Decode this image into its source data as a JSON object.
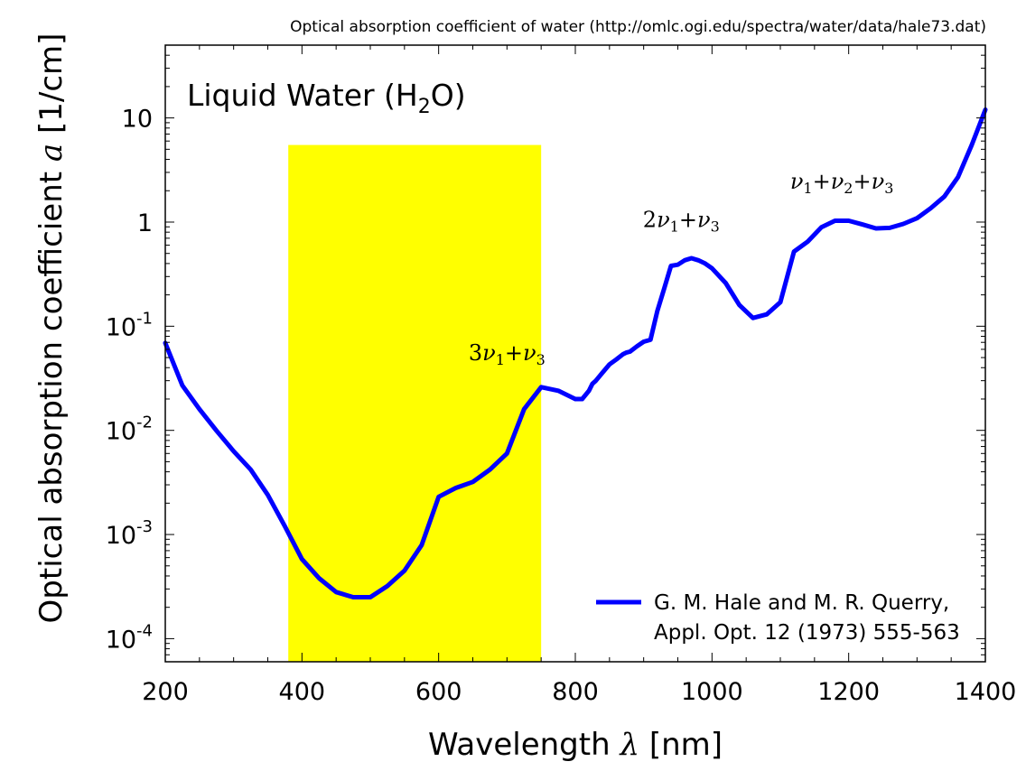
{
  "source_note": "Optical absorption coefficient of water (http://omlc.ogi.edu/spectra/water/data/hale73.dat)",
  "chart_data": {
    "type": "line",
    "title": "Liquid Water (H₂O)",
    "title_parts": {
      "base": "Liquid Water (H",
      "sub": "2",
      "tail": "O)"
    },
    "xlabel": "Wavelength λ [nm]",
    "xlabel_parts": {
      "text": "Wavelength ",
      "symbol": "λ",
      "unit": " [nm]"
    },
    "ylabel": "Optical absorption coefficient a [1/cm]",
    "ylabel_parts": {
      "text": "Optical absorption coefficient ",
      "symbol": "a",
      "unit": " [1/cm]"
    },
    "xlim": [
      200,
      1400
    ],
    "ylim": [
      6e-05,
      50
    ],
    "yscale": "log",
    "grid": false,
    "legend_position": "bottom-right",
    "x_ticks": [
      {
        "value": 200,
        "label": "200"
      },
      {
        "value": 400,
        "label": "400"
      },
      {
        "value": 600,
        "label": "600"
      },
      {
        "value": 800,
        "label": "800"
      },
      {
        "value": 1000,
        "label": "1000"
      },
      {
        "value": 1200,
        "label": "1200"
      },
      {
        "value": 1400,
        "label": "1400"
      }
    ],
    "y_ticks": [
      {
        "value": 0.0001,
        "base": "10",
        "exp": "-4"
      },
      {
        "value": 0.001,
        "base": "10",
        "exp": "-3"
      },
      {
        "value": 0.01,
        "base": "10",
        "exp": "-2"
      },
      {
        "value": 0.1,
        "base": "10",
        "exp": "-1"
      },
      {
        "value": 1,
        "base": "1",
        "exp": ""
      },
      {
        "value": 10,
        "base": "10",
        "exp": ""
      }
    ],
    "highlight_band": {
      "x_start": 380,
      "x_end": 750,
      "y_top": 5.5,
      "color": "#ffff00",
      "meaning": "visible range"
    },
    "series": [
      {
        "name": "G. M. Hale and M. R. Querry, Appl. Opt. 12 (1973) 555-563",
        "legend_lines": [
          "G. M. Hale and M. R. Querry,",
          "Appl. Opt. 12 (1973) 555-563"
        ],
        "color": "#0000ff",
        "x": [
          200,
          225,
          250,
          275,
          300,
          325,
          350,
          375,
          400,
          425,
          450,
          475,
          500,
          525,
          550,
          575,
          600,
          625,
          650,
          675,
          700,
          725,
          750,
          775,
          800,
          810,
          820,
          825,
          830,
          840,
          850,
          860,
          870,
          875,
          880,
          890,
          900,
          910,
          920,
          930,
          940,
          950,
          960,
          970,
          980,
          990,
          1000,
          1020,
          1040,
          1060,
          1080,
          1100,
          1120,
          1140,
          1160,
          1180,
          1200,
          1220,
          1240,
          1260,
          1280,
          1300,
          1320,
          1340,
          1360,
          1380,
          1400
        ],
        "y": [
          0.069,
          0.027,
          0.016,
          0.0099,
          0.0063,
          0.0042,
          0.0024,
          0.0012,
          0.00058,
          0.00038,
          0.00028,
          0.00025,
          0.00025,
          0.00032,
          0.00045,
          0.00079,
          0.0023,
          0.0028,
          0.0032,
          0.0042,
          0.006,
          0.016,
          0.026,
          0.024,
          0.02,
          0.02,
          0.024,
          0.028,
          0.03,
          0.036,
          0.043,
          0.048,
          0.054,
          0.056,
          0.057,
          0.064,
          0.071,
          0.074,
          0.14,
          0.23,
          0.38,
          0.39,
          0.43,
          0.45,
          0.43,
          0.4,
          0.36,
          0.26,
          0.16,
          0.12,
          0.13,
          0.17,
          0.52,
          0.65,
          0.89,
          1.03,
          1.03,
          0.95,
          0.87,
          0.88,
          0.96,
          1.09,
          1.36,
          1.76,
          2.7,
          5.5,
          12.0
        ]
      }
    ],
    "annotations": [
      {
        "x": 700,
        "y": 0.047,
        "prefix": "3",
        "terms": [
          {
            "sym": "ν",
            "sub": "1"
          },
          {
            "sym": "ν",
            "sub": "3"
          }
        ]
      },
      {
        "x": 955,
        "y": 0.9,
        "prefix": "2",
        "terms": [
          {
            "sym": "ν",
            "sub": "1"
          },
          {
            "sym": "ν",
            "sub": "3"
          }
        ]
      },
      {
        "x": 1190,
        "y": 2.1,
        "prefix": "",
        "terms": [
          {
            "sym": "ν",
            "sub": "1"
          },
          {
            "sym": "ν",
            "sub": "2"
          },
          {
            "sym": "ν",
            "sub": "3"
          }
        ]
      }
    ]
  }
}
